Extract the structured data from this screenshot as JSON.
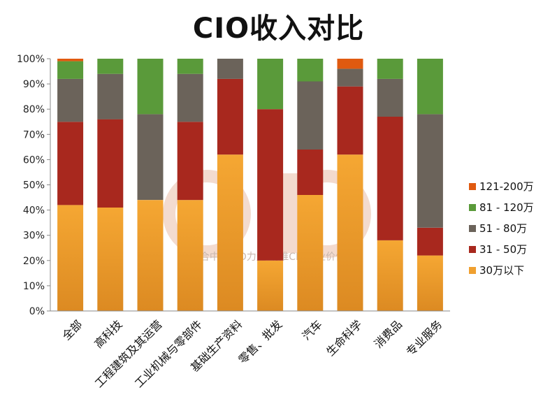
{
  "chart_data": {
    "type": "bar",
    "stacked": true,
    "title": "CIO收入对比",
    "categories": [
      "全部",
      "高科技",
      "工程建筑及其运营",
      "工业机械与零部件",
      "基础生产资料",
      "零售、批发",
      "汽车",
      "生命科学",
      "消费品",
      "专业服务"
    ],
    "series": [
      {
        "name": "30万以下",
        "color": "#F0A030",
        "values": [
          42,
          41,
          44,
          44,
          62,
          20,
          46,
          62,
          28,
          22
        ]
      },
      {
        "name": "31 - 50万",
        "color": "#A8281E",
        "values": [
          33,
          35,
          0,
          31,
          30,
          60,
          18,
          27,
          49,
          11
        ]
      },
      {
        "name": "51 - 80万",
        "color": "#6B635A",
        "values": [
          17,
          18,
          34,
          19,
          8,
          0,
          27,
          7,
          15,
          45
        ]
      },
      {
        "name": "81 - 120万",
        "color": "#5A9A3A",
        "values": [
          7,
          6,
          22,
          6,
          0,
          20,
          9,
          0,
          8,
          22
        ]
      },
      {
        "name": "121-200万",
        "color": "#E05A10",
        "values": [
          1,
          0,
          0,
          0,
          0,
          0,
          0,
          4,
          0,
          0
        ]
      }
    ],
    "ylim": [
      0,
      100
    ],
    "yticks": [
      "0%",
      "10%",
      "20%",
      "30%",
      "40%",
      "50%",
      "60%",
      "70%",
      "80%",
      "90%",
      "100%"
    ],
    "legend_position": "right",
    "grid": false,
    "watermark": "聚合中国CIO力量 助推CIO商业价值"
  }
}
